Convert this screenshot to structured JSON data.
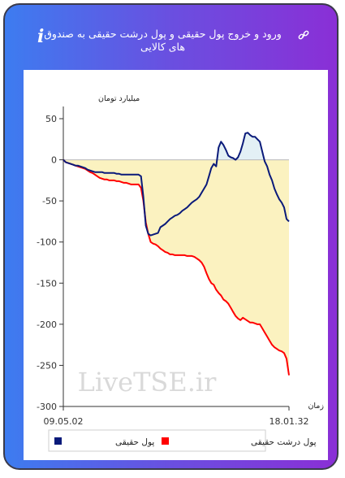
{
  "header": {
    "title": "ورود و خروج پول حقیقی و پول درشت حقیقی به صندوق های کالایی",
    "link_icon": "link-icon",
    "info_icon_glyph": "i"
  },
  "colors": {
    "card_gradient_start": "#3d7cf0",
    "card_gradient_end": "#8a2fd6",
    "real_money_line": "#0a1a7a",
    "big_real_money_line": "#ff0000",
    "big_fill": "#fbf2c0",
    "positive_fill": "#e3f0f5"
  },
  "chart_data": {
    "type": "line",
    "ylabel": "میلیارد تومان",
    "xlabel": "زمان",
    "ylim": [
      -300,
      50
    ],
    "yticks": [
      50,
      0,
      -50,
      -100,
      -150,
      -200,
      -250,
      -300
    ],
    "xticks": [
      "09.05.02",
      "18.01.32"
    ],
    "grid": false,
    "legend_position": "bottom",
    "watermark": "LiveTSE.ir",
    "x": [
      0,
      3,
      6,
      9,
      12,
      15,
      18,
      21,
      24,
      27,
      30,
      33,
      36,
      39,
      42,
      45,
      48,
      51,
      54,
      57,
      60,
      63,
      66,
      69,
      72,
      75,
      78,
      81,
      84,
      87,
      90,
      93,
      96,
      99,
      102,
      105,
      108,
      111,
      114,
      117,
      120,
      123,
      126,
      129,
      132,
      135,
      138,
      141,
      144,
      147,
      150,
      153,
      156,
      159,
      162,
      165,
      168,
      171,
      174,
      177,
      180,
      183,
      186,
      189,
      192,
      195,
      198,
      201,
      204,
      207,
      210,
      213,
      216,
      219,
      222,
      225,
      228,
      231,
      234,
      237,
      240,
      243,
      246,
      249,
      252,
      255,
      258,
      261,
      264,
      267,
      270,
      273,
      276,
      279
    ],
    "series": [
      {
        "name": "پول حقیقی",
        "values": [
          0,
          -3,
          -4,
          -5,
          -6,
          -7,
          -7,
          -8,
          -9,
          -10,
          -12,
          -13,
          -14,
          -15,
          -15,
          -15,
          -15,
          -16,
          -16,
          -16,
          -16,
          -16,
          -17,
          -17,
          -18,
          -18,
          -18,
          -18,
          -18,
          -18,
          -18,
          -18,
          -20,
          -45,
          -80,
          -90,
          -92,
          -91,
          -90,
          -89,
          -82,
          -80,
          -78,
          -75,
          -72,
          -70,
          -68,
          -67,
          -65,
          -62,
          -60,
          -58,
          -55,
          -52,
          -50,
          -48,
          -45,
          -40,
          -35,
          -30,
          -20,
          -10,
          -5,
          -8,
          15,
          22,
          18,
          12,
          5,
          3,
          2,
          0,
          3,
          10,
          20,
          32,
          33,
          30,
          28,
          28,
          25,
          22,
          10,
          -2,
          -8,
          -18,
          -25,
          -35,
          -42,
          -48,
          -52,
          -58,
          -72,
          -75
        ]
      },
      {
        "name": "پول درشت حقیقی",
        "values": [
          0,
          -3,
          -4,
          -5,
          -6,
          -7,
          -8,
          -9,
          -10,
          -11,
          -13,
          -15,
          -16,
          -18,
          -20,
          -22,
          -23,
          -24,
          -24,
          -25,
          -25,
          -25,
          -26,
          -26,
          -27,
          -28,
          -28,
          -29,
          -30,
          -30,
          -30,
          -30,
          -34,
          -50,
          -76,
          -90,
          -100,
          -102,
          -103,
          -105,
          -108,
          -110,
          -112,
          -113,
          -115,
          -115,
          -116,
          -116,
          -116,
          -116,
          -116,
          -117,
          -117,
          -117,
          -118,
          -120,
          -122,
          -125,
          -130,
          -138,
          -145,
          -150,
          -152,
          -158,
          -162,
          -165,
          -170,
          -172,
          -175,
          -180,
          -185,
          -190,
          -193,
          -195,
          -192,
          -194,
          -196,
          -198,
          -198,
          -199,
          -200,
          -200,
          -205,
          -210,
          -215,
          -220,
          -225,
          -228,
          -230,
          -232,
          -233,
          -235,
          -242,
          -262
        ]
      }
    ]
  }
}
